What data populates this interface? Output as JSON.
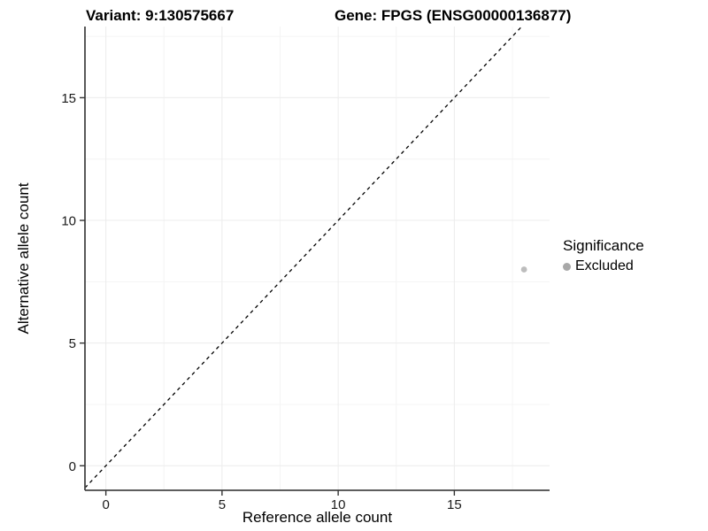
{
  "header": {
    "variant_title": "Variant: 9:130575667",
    "gene_title": "Gene: FPGS (ENSG00000136877)"
  },
  "chart_data": {
    "type": "scatter",
    "title": "Variant: 9:130575667  |  Gene: FPGS (ENSG00000136877)",
    "xlabel": "Reference allele count",
    "ylabel": "Alternative allele count",
    "xlim": [
      -0.9,
      19.1
    ],
    "ylim": [
      -1.0,
      17.9
    ],
    "xticks": [
      0,
      5,
      10,
      15
    ],
    "yticks": [
      0,
      5,
      10,
      15
    ],
    "x_minor": [
      2.5,
      7.5,
      12.5,
      17.5
    ],
    "y_minor": [
      2.5,
      7.5,
      12.5,
      17.5
    ],
    "grid": true,
    "points": [
      {
        "x": 18,
        "y": 8,
        "series": "Excluded",
        "color": "#bdbdbd"
      }
    ],
    "abline": {
      "slope": 1,
      "intercept": 0,
      "style": "dashed",
      "color": "#000000"
    },
    "legend": {
      "title": "Significance",
      "position": "right",
      "entries": [
        {
          "label": "Excluded",
          "color": "#a8a8a8"
        }
      ]
    },
    "colors": {
      "background": "#ffffff",
      "grid_major": "#ececec",
      "grid_minor": "#f4f4f4",
      "axis_line": "#474747",
      "tick_mark": "#333333",
      "tick_text": "#1a1a1a"
    }
  }
}
